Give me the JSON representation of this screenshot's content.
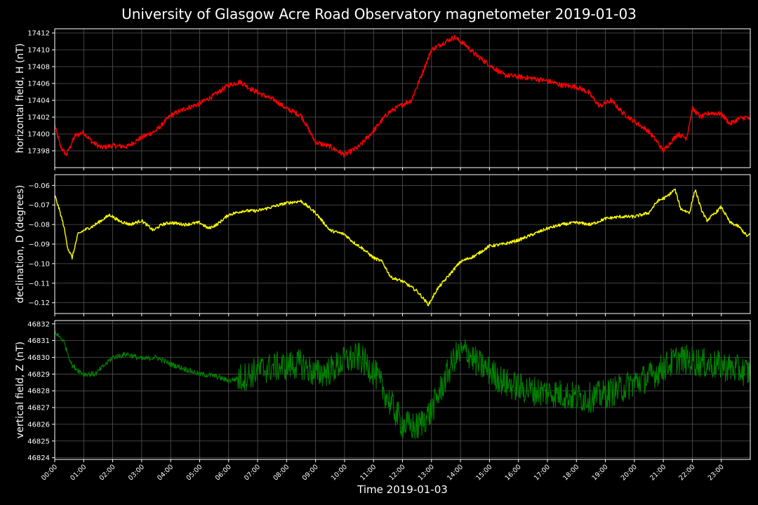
{
  "title": "University of Glasgow Acre Road Observatory magnetometer 2019-01-03",
  "chart_data": [
    {
      "type": "line",
      "ylabel": "horizontal field, H (nT)",
      "color": "#ff0000",
      "ylim": [
        17396.0,
        17412.5
      ],
      "yticks": [
        17398,
        17400,
        17402,
        17404,
        17406,
        17408,
        17410,
        17412
      ],
      "ytick_labels": [
        "17398",
        "17400",
        "17402",
        "17404",
        "17406",
        "17408",
        "17410",
        "17412"
      ],
      "noise": 0.3,
      "x": [
        0,
        0.2,
        0.4,
        0.7,
        1.0,
        1.3,
        1.6,
        2.0,
        2.5,
        3.0,
        3.5,
        4.0,
        4.5,
        5.0,
        5.5,
        6.0,
        6.4,
        6.8,
        7.2,
        7.6,
        8.0,
        8.5,
        9.0,
        9.5,
        10.0,
        10.5,
        11.0,
        11.5,
        12.0,
        12.3,
        12.6,
        13.0,
        13.5,
        13.8,
        14.2,
        14.5,
        15.0,
        15.5,
        16.0,
        16.5,
        17.0,
        17.5,
        18.0,
        18.4,
        18.8,
        19.2,
        19.6,
        20.0,
        20.5,
        20.8,
        21.0,
        21.3,
        21.5,
        21.8,
        22.0,
        22.3,
        22.6,
        23.0,
        23.3,
        23.6,
        23.9,
        24.0
      ],
      "y": [
        17401.0,
        17398.5,
        17397.5,
        17399.8,
        17400.2,
        17399.0,
        17398.4,
        17398.6,
        17398.5,
        17399.6,
        17400.4,
        17402.2,
        17403.0,
        17403.6,
        17404.6,
        17405.8,
        17406.2,
        17405.3,
        17404.6,
        17404.0,
        17403.0,
        17402.2,
        17399.0,
        17398.5,
        17397.5,
        17398.5,
        17400.4,
        17402.5,
        17403.5,
        17404.0,
        17406.5,
        17410.0,
        17411.0,
        17411.5,
        17410.5,
        17409.5,
        17408.2,
        17407.0,
        17406.8,
        17406.6,
        17406.3,
        17405.8,
        17405.6,
        17405.0,
        17403.3,
        17404.0,
        17402.5,
        17401.5,
        17400.3,
        17399.0,
        17398.0,
        17399.2,
        17400.0,
        17399.5,
        17403.0,
        17402.0,
        17402.5,
        17402.4,
        17401.2,
        17401.8,
        17402.0,
        17401.5
      ]
    },
    {
      "type": "line",
      "ylabel": "declination, D (degrees)",
      "color": "#ffff00",
      "ylim": [
        -0.1255,
        -0.0545
      ],
      "yticks": [
        -0.12,
        -0.11,
        -0.1,
        -0.09,
        -0.08,
        -0.07,
        -0.06
      ],
      "ytick_labels": [
        "−0.12",
        "−0.11",
        "−0.10",
        "−0.09",
        "−0.08",
        "−0.07",
        "−0.06"
      ],
      "noise": 0.0008,
      "x": [
        0,
        0.15,
        0.3,
        0.45,
        0.6,
        0.8,
        1.0,
        1.3,
        1.6,
        1.9,
        2.2,
        2.6,
        3.0,
        3.4,
        3.7,
        4.0,
        4.5,
        5.0,
        5.3,
        5.6,
        6.0,
        6.5,
        7.0,
        7.5,
        8.0,
        8.5,
        9.0,
        9.5,
        10.0,
        10.3,
        10.6,
        11.0,
        11.3,
        11.6,
        12.0,
        12.5,
        12.9,
        13.2,
        13.6,
        14.0,
        14.5,
        15.0,
        15.5,
        16.0,
        16.5,
        17.0,
        17.5,
        18.0,
        18.5,
        19.0,
        19.5,
        20.0,
        20.5,
        20.8,
        21.1,
        21.4,
        21.6,
        21.9,
        22.1,
        22.3,
        22.5,
        22.8,
        23.0,
        23.3,
        23.6,
        23.9,
        24.0
      ],
      "y": [
        -0.065,
        -0.072,
        -0.08,
        -0.092,
        -0.097,
        -0.085,
        -0.083,
        -0.081,
        -0.078,
        -0.075,
        -0.078,
        -0.08,
        -0.078,
        -0.083,
        -0.08,
        -0.079,
        -0.08,
        -0.079,
        -0.082,
        -0.08,
        -0.075,
        -0.073,
        -0.073,
        -0.071,
        -0.069,
        -0.068,
        -0.074,
        -0.083,
        -0.085,
        -0.089,
        -0.092,
        -0.097,
        -0.099,
        -0.107,
        -0.109,
        -0.114,
        -0.121,
        -0.113,
        -0.106,
        -0.099,
        -0.096,
        -0.091,
        -0.09,
        -0.088,
        -0.085,
        -0.082,
        -0.08,
        -0.079,
        -0.08,
        -0.077,
        -0.076,
        -0.076,
        -0.074,
        -0.068,
        -0.066,
        -0.062,
        -0.072,
        -0.074,
        -0.062,
        -0.072,
        -0.078,
        -0.074,
        -0.071,
        -0.079,
        -0.081,
        -0.086,
        -0.085
      ]
    },
    {
      "type": "line",
      "ylabel": "vertical field, Z (nT)",
      "color": "#008000",
      "ylim": [
        46823.9,
        46832.2
      ],
      "yticks": [
        46824,
        46825,
        46826,
        46827,
        46828,
        46829,
        46830,
        46831,
        46832
      ],
      "ytick_labels": [
        "46824",
        "46825",
        "46826",
        "46827",
        "46828",
        "46829",
        "46830",
        "46831",
        "46832"
      ],
      "noise": 0.9,
      "x": [
        0,
        0.3,
        0.6,
        1.0,
        1.4,
        2.0,
        2.5,
        3.0,
        3.5,
        4.0,
        4.5,
        5.0,
        5.5,
        6.0,
        6.5,
        7.0,
        7.5,
        8.0,
        8.5,
        9.0,
        9.5,
        10.0,
        10.5,
        11.0,
        11.5,
        12.0,
        12.5,
        13.0,
        13.5,
        13.8,
        14.2,
        14.6,
        15.0,
        15.5,
        16.0,
        16.5,
        17.0,
        17.5,
        18.0,
        18.5,
        19.0,
        19.5,
        20.0,
        20.5,
        21.0,
        21.5,
        22.0,
        22.5,
        23.0,
        23.5,
        24.0
      ],
      "y": [
        46831.5,
        46831.0,
        46829.5,
        46829.0,
        46829.0,
        46830.0,
        46830.2,
        46829.9,
        46830.0,
        46829.6,
        46829.3,
        46829.0,
        46828.9,
        46828.6,
        46828.8,
        46829.2,
        46829.4,
        46829.5,
        46829.6,
        46829.0,
        46829.2,
        46829.8,
        46830.0,
        46829.2,
        46827.5,
        46826.0,
        46825.8,
        46826.8,
        46828.8,
        46830.0,
        46830.4,
        46829.6,
        46829.2,
        46828.5,
        46828.2,
        46828.0,
        46827.9,
        46827.8,
        46827.6,
        46827.6,
        46827.8,
        46828.1,
        46828.5,
        46828.8,
        46829.4,
        46829.9,
        46829.8,
        46829.6,
        46829.5,
        46829.3,
        46829.1
      ]
    }
  ],
  "xaxis": {
    "label": "Time 2019-01-03",
    "range_hours": [
      0,
      24
    ],
    "tick_labels": [
      "00:00",
      "01:00",
      "02:00",
      "03:00",
      "04:00",
      "05:00",
      "06:00",
      "07:00",
      "08:00",
      "09:00",
      "10:00",
      "11:00",
      "12:00",
      "13:00",
      "14:00",
      "15:00",
      "16:00",
      "17:00",
      "18:00",
      "19:00",
      "20:00",
      "21:00",
      "22:00",
      "23:00"
    ]
  },
  "style": {
    "background": "#000000",
    "grid_color": "#555555",
    "axis_color": "#ffffff",
    "text_color": "#ffffff"
  }
}
